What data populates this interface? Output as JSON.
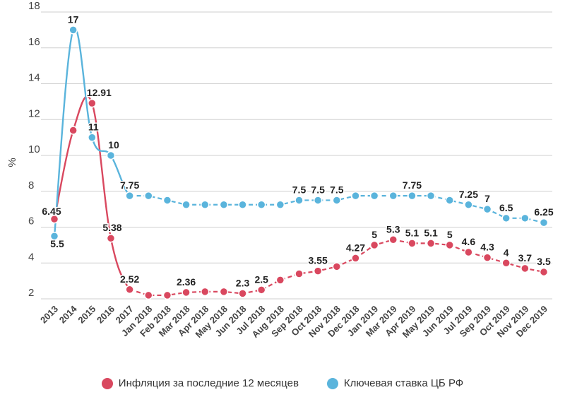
{
  "chart_data": {
    "type": "line",
    "title": "",
    "xlabel": "",
    "ylabel": "%",
    "ylim": [
      2,
      18
    ],
    "yticks": [
      2,
      4,
      6,
      8,
      10,
      12,
      14,
      16,
      18
    ],
    "categories": [
      "2013",
      "2014",
      "2015",
      "2016",
      "2017",
      "Jan 2018",
      "Feb 2018",
      "Mar 2018",
      "Apr 2018",
      "May 2018",
      "Jun 2018",
      "Jul 2018",
      "Aug 2018",
      "Sep 2018",
      "Oct 2018",
      "Nov 2018",
      "Dec 2018",
      "Jan 2019",
      "Mar 2019",
      "Apr 2019",
      "May 2019",
      "Jun 2019",
      "Jul 2019",
      "Sep 2019",
      "Oct 2019",
      "Nov 2019",
      "Dec 2019"
    ],
    "series": [
      {
        "name": "Инфляция за последние 12 месяцев",
        "color": "#d9485f",
        "smooth_start": true,
        "values": [
          6.45,
          11.4,
          12.91,
          5.38,
          2.52,
          2.2,
          2.2,
          2.36,
          2.4,
          2.4,
          2.3,
          2.5,
          3.05,
          3.4,
          3.55,
          3.8,
          4.27,
          5,
          5.3,
          5.1,
          5.1,
          5,
          4.6,
          4.3,
          4,
          3.7,
          3.5
        ],
        "labels": [
          "6.45",
          "",
          "12.91",
          "5.38",
          "2.52",
          "",
          "",
          "2.36",
          "",
          "",
          "2.3",
          "2.5",
          "",
          "",
          "3.55",
          "",
          "4.27",
          "5",
          "5.3",
          "5.1",
          "5.1",
          "5",
          "4.6",
          "4.3",
          "4",
          "3.7",
          "3.5"
        ]
      },
      {
        "name": "Ключевая ставка ЦБ РФ",
        "color": "#5ab4dc",
        "smooth_start": true,
        "values": [
          5.5,
          17,
          11,
          10,
          7.75,
          7.75,
          7.5,
          7.25,
          7.25,
          7.25,
          7.25,
          7.25,
          7.25,
          7.5,
          7.5,
          7.5,
          7.75,
          7.75,
          7.75,
          7.75,
          7.75,
          7.5,
          7.25,
          7,
          6.5,
          6.5,
          6.25
        ],
        "labels": [
          "5.5",
          "17",
          "11",
          "10",
          "7.75",
          "",
          "",
          "",
          "",
          "",
          "",
          "",
          "",
          "7.5",
          "7.5",
          "7.5",
          "",
          "",
          "",
          "7.75",
          "",
          "",
          "7.25",
          "7",
          "6.5",
          "",
          "6.25"
        ]
      }
    ]
  },
  "legend": {
    "items": [
      {
        "label": "Инфляция за последние 12 месяцев",
        "color": "#d9485f"
      },
      {
        "label": "Ключевая ставка ЦБ РФ",
        "color": "#5ab4dc"
      }
    ]
  }
}
